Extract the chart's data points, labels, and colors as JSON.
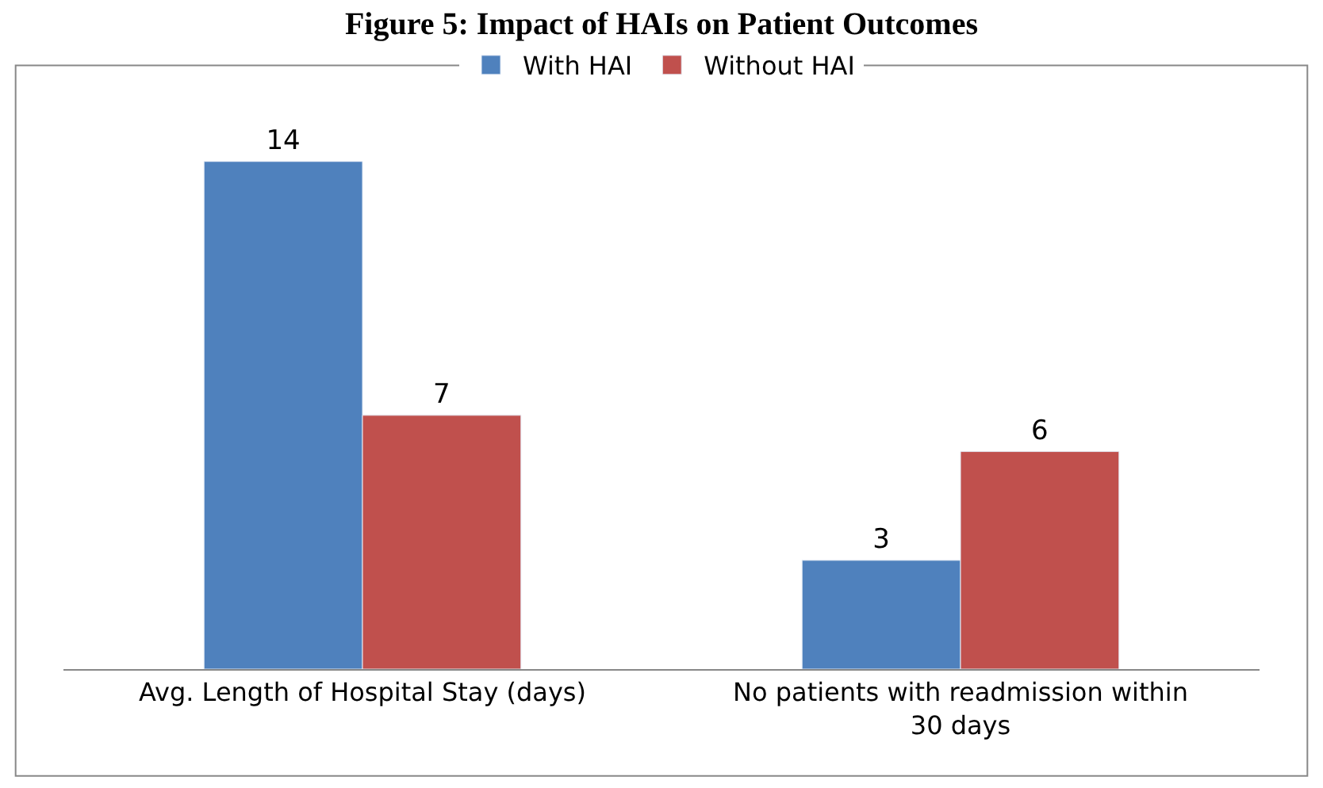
{
  "chart_data": {
    "type": "bar",
    "title": "Figure 5: Impact of HAIs on Patient Outcomes",
    "categories": [
      "Avg. Length of Hospital Stay (days)",
      "No patients with readmission within 30 days"
    ],
    "series": [
      {
        "name": "With HAI",
        "color": "#4f81bd",
        "values": [
          14,
          3
        ]
      },
      {
        "name": "Without HAI",
        "color": "#c0504d",
        "values": [
          7,
          6
        ]
      }
    ],
    "data_labels": true,
    "legend": "top"
  }
}
